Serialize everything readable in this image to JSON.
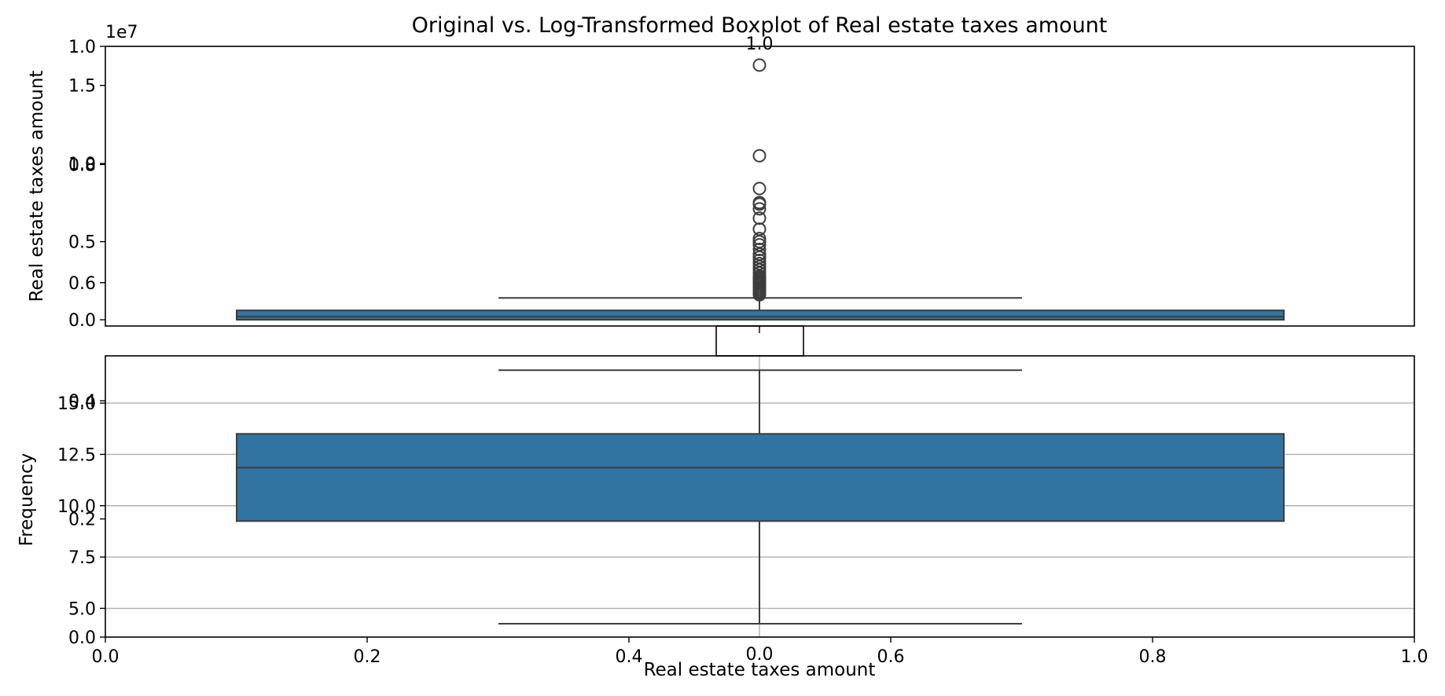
{
  "chart_data": [
    {
      "type": "boxplot",
      "panel": "top-original",
      "title": "Original vs. Log-Transformed Boxplot of Real estate taxes amount",
      "ylabel": "Real estate taxes amount",
      "offset_label": "1e7",
      "yticks": [
        {
          "value": 0.0,
          "label": "0.0"
        },
        {
          "value": 0.5,
          "label": "0.5"
        },
        {
          "value": 1.0,
          "label": "1.0"
        },
        {
          "value": 1.5,
          "label": "1.5"
        }
      ],
      "ylim": [
        -0.04,
        1.75
      ],
      "box": {
        "q1": 0.0,
        "median": 0.02,
        "q3": 0.06,
        "whisker_low": 0.0,
        "whisker_high": 0.14,
        "color": "#3274a1"
      },
      "outliers": [
        0.16,
        0.17,
        0.18,
        0.19,
        0.2,
        0.21,
        0.22,
        0.23,
        0.24,
        0.25,
        0.26,
        0.27,
        0.28,
        0.3,
        0.32,
        0.34,
        0.36,
        0.38,
        0.4,
        0.42,
        0.45,
        0.48,
        0.5,
        0.52,
        0.58,
        0.65,
        0.71,
        0.74,
        0.75,
        0.84,
        1.05,
        1.63
      ]
    },
    {
      "type": "boxplot",
      "panel": "bottom-log",
      "xlabel": "Real estate taxes amount",
      "ylabel": "Frequency",
      "yticks": [
        {
          "value": 5.0,
          "label": "5.0"
        },
        {
          "value": 7.5,
          "label": "7.5"
        },
        {
          "value": 10.0,
          "label": "10.0"
        },
        {
          "value": 12.5,
          "label": "12.5"
        },
        {
          "value": 15.0,
          "label": "15.0"
        }
      ],
      "ylim": [
        3.6,
        17.3
      ],
      "grid": true,
      "box": {
        "q1": 9.25,
        "median": 11.85,
        "q3": 13.5,
        "whisker_low": 4.25,
        "whisker_high": 16.6,
        "color": "#3274a1"
      }
    },
    {
      "type": "axes-overlay",
      "panel": "full-figure-axes",
      "xticks": [
        "0.0",
        "0.2",
        "0.4",
        "0.6",
        "0.8",
        "1.0"
      ],
      "yticks": [
        {
          "value": 0.0,
          "label": "0.0"
        },
        {
          "value": 0.2,
          "label": "0.2"
        },
        {
          "value": 0.4,
          "label": "0.4"
        },
        {
          "value": 0.6,
          "label": "0.6"
        },
        {
          "value": 0.8,
          "label": "0.8"
        },
        {
          "value": 1.0,
          "label": "1.0"
        }
      ]
    },
    {
      "type": "axes-overlay",
      "panel": "middle-axes",
      "xticks": [
        "0.0"
      ],
      "yticks": [
        {
          "value": 1.0,
          "label": "1.0"
        }
      ]
    }
  ]
}
